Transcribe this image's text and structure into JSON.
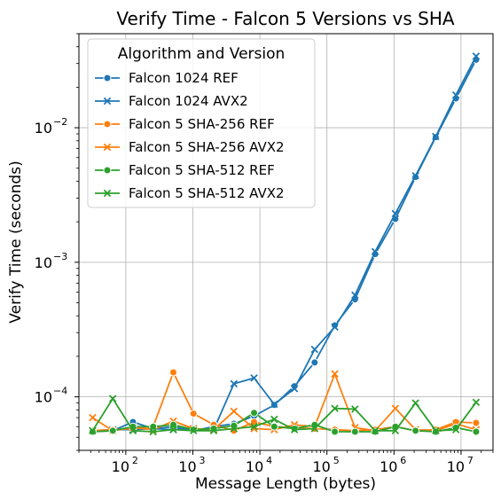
{
  "chart_data": {
    "type": "line",
    "title": "Verify Time - Falcon 5 Versions vs SHA",
    "xlabel": "Message Length (bytes)",
    "ylabel": "Verify Time (seconds)",
    "xscale": "log",
    "yscale": "log",
    "xlim": [
      20,
      30000000
    ],
    "ylim": [
      4e-05,
      0.05
    ],
    "grid": true,
    "legend": {
      "title": "Algorithm and Version",
      "placement": "top-left"
    },
    "x_ticks": [
      {
        "value": 100,
        "base": "10",
        "exp": "2"
      },
      {
        "value": 1000,
        "base": "10",
        "exp": "3"
      },
      {
        "value": 10000,
        "base": "10",
        "exp": "4"
      },
      {
        "value": 100000,
        "base": "10",
        "exp": "5"
      },
      {
        "value": 1000000,
        "base": "10",
        "exp": "6"
      },
      {
        "value": 10000000,
        "base": "10",
        "exp": "7"
      }
    ],
    "y_ticks": [
      {
        "value": 0.0001,
        "base": "10",
        "exp": "−4"
      },
      {
        "value": 0.001,
        "base": "10",
        "exp": "−3"
      },
      {
        "value": 0.01,
        "base": "10",
        "exp": "−2"
      }
    ],
    "x": [
      32,
      64,
      128,
      256,
      512,
      1024,
      2048,
      4096,
      8192,
      16384,
      32768,
      65536,
      131072,
      262144,
      524288,
      1048576,
      2097152,
      4194304,
      8388608,
      16777216
    ],
    "series": [
      {
        "name": "Falcon 1024 REF",
        "color": "#1f77b4",
        "marker": "circle",
        "values": [
          5.5e-05,
          5.6e-05,
          6.5e-05,
          5.8e-05,
          6e-05,
          5.6e-05,
          6e-05,
          6.3e-05,
          7.2e-05,
          8.7e-05,
          0.00012,
          0.00018,
          0.00034,
          0.00053,
          0.00115,
          0.0021,
          0.0043,
          0.0085,
          0.0165,
          0.032
        ]
      },
      {
        "name": "Falcon 1024 AVX2",
        "color": "#1f77b4",
        "marker": "x",
        "values": [
          5.6e-05,
          5.7e-05,
          5.7e-05,
          5.8e-05,
          5.7e-05,
          5.8e-05,
          5.7e-05,
          0.000125,
          0.000138,
          8.8e-05,
          0.000115,
          0.000225,
          0.00033,
          0.00057,
          0.0012,
          0.0023,
          0.0044,
          0.0086,
          0.0175,
          0.034
        ]
      },
      {
        "name": "Falcon 5 SHA-256 REF",
        "color": "#ff7f0e",
        "marker": "circle",
        "values": [
          5.6e-05,
          5.7e-05,
          5.8e-05,
          6e-05,
          0.000152,
          7.5e-05,
          6.2e-05,
          5.6e-05,
          6.5e-05,
          6e-05,
          5.9e-05,
          5.8e-05,
          5.7e-05,
          5.6e-05,
          5.7e-05,
          6e-05,
          5.6e-05,
          5.7e-05,
          6.5e-05,
          6.4e-05
        ]
      },
      {
        "name": "Falcon 5 SHA-256 AVX2",
        "color": "#ff7f0e",
        "marker": "x",
        "values": [
          7e-05,
          5.6e-05,
          5.9e-05,
          5.7e-05,
          6.6e-05,
          5.8e-05,
          5.7e-05,
          7.8e-05,
          5.8e-05,
          5.7e-05,
          6.2e-05,
          6e-05,
          0.000148,
          5.9e-05,
          5.6e-05,
          8.2e-05,
          5.7e-05,
          5.6e-05,
          6.3e-05,
          5.7e-05
        ]
      },
      {
        "name": "Falcon 5 SHA-512 REF",
        "color": "#2ca02c",
        "marker": "circle",
        "values": [
          5.5e-05,
          5.6e-05,
          6e-05,
          6e-05,
          6.2e-05,
          5.7e-05,
          5.8e-05,
          6.1e-05,
          7.6e-05,
          6e-05,
          5.8e-05,
          6.2e-05,
          5.5e-05,
          5.5e-05,
          5.5e-05,
          6e-05,
          5.6e-05,
          5.5e-05,
          5.9e-05,
          5.5e-05
        ]
      },
      {
        "name": "Falcon 5 SHA-512 AVX2",
        "color": "#2ca02c",
        "marker": "x",
        "values": [
          5.6e-05,
          9.7e-05,
          5.6e-05,
          5.5e-05,
          5.7e-05,
          5.6e-05,
          5.6e-05,
          5.8e-05,
          6e-05,
          6.8e-05,
          5.7e-05,
          5.8e-05,
          8.2e-05,
          8.1e-05,
          5.6e-05,
          5.6e-05,
          9e-05,
          5.6e-05,
          5.7e-05,
          9.1e-05
        ]
      }
    ]
  }
}
